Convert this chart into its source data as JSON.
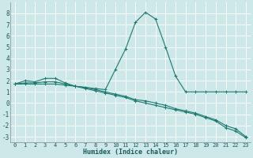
{
  "xlabel": "Humidex (Indice chaleur)",
  "background_color": "#cce8e8",
  "grid_color": "#b0d4d4",
  "line_color": "#1a7a6e",
  "x_values": [
    0,
    1,
    2,
    3,
    4,
    5,
    6,
    7,
    8,
    9,
    10,
    11,
    12,
    13,
    14,
    15,
    16,
    17,
    18,
    19,
    20,
    21,
    22,
    23
  ],
  "line1_y": [
    1.7,
    2.0,
    1.9,
    2.2,
    2.2,
    1.8,
    1.5,
    1.4,
    1.3,
    1.2,
    3.0,
    4.8,
    7.2,
    8.1,
    7.5,
    5.0,
    2.4,
    1.0,
    1.0,
    1.0,
    1.0,
    1.0,
    1.0,
    1.0
  ],
  "line2_y": [
    1.7,
    1.8,
    1.8,
    1.9,
    1.9,
    1.7,
    1.5,
    1.3,
    1.1,
    0.9,
    0.7,
    0.5,
    0.2,
    0.0,
    -0.2,
    -0.4,
    -0.6,
    -0.8,
    -1.0,
    -1.3,
    -1.6,
    -2.2,
    -2.5,
    -3.1
  ],
  "line3_y": [
    1.7,
    1.7,
    1.7,
    1.7,
    1.7,
    1.6,
    1.5,
    1.4,
    1.2,
    1.0,
    0.8,
    0.6,
    0.3,
    0.2,
    0.0,
    -0.2,
    -0.5,
    -0.7,
    -0.9,
    -1.2,
    -1.5,
    -2.0,
    -2.3,
    -3.0
  ],
  "ylim": [
    -3.5,
    9.0
  ],
  "xlim": [
    -0.5,
    23.5
  ],
  "yticks": [
    -3,
    -2,
    -1,
    0,
    1,
    2,
    3,
    4,
    5,
    6,
    7,
    8
  ],
  "xticks": [
    0,
    1,
    2,
    3,
    4,
    5,
    6,
    7,
    8,
    9,
    10,
    11,
    12,
    13,
    14,
    15,
    16,
    17,
    18,
    19,
    20,
    21,
    22,
    23
  ],
  "xtick_labels": [
    "0",
    "1",
    "2",
    "3",
    "4",
    "5",
    "6",
    "7",
    "8",
    "9",
    "10",
    "11",
    "12",
    "13",
    "14",
    "15",
    "16",
    "17",
    "18",
    "19",
    "20",
    "21",
    "22",
    "23"
  ]
}
